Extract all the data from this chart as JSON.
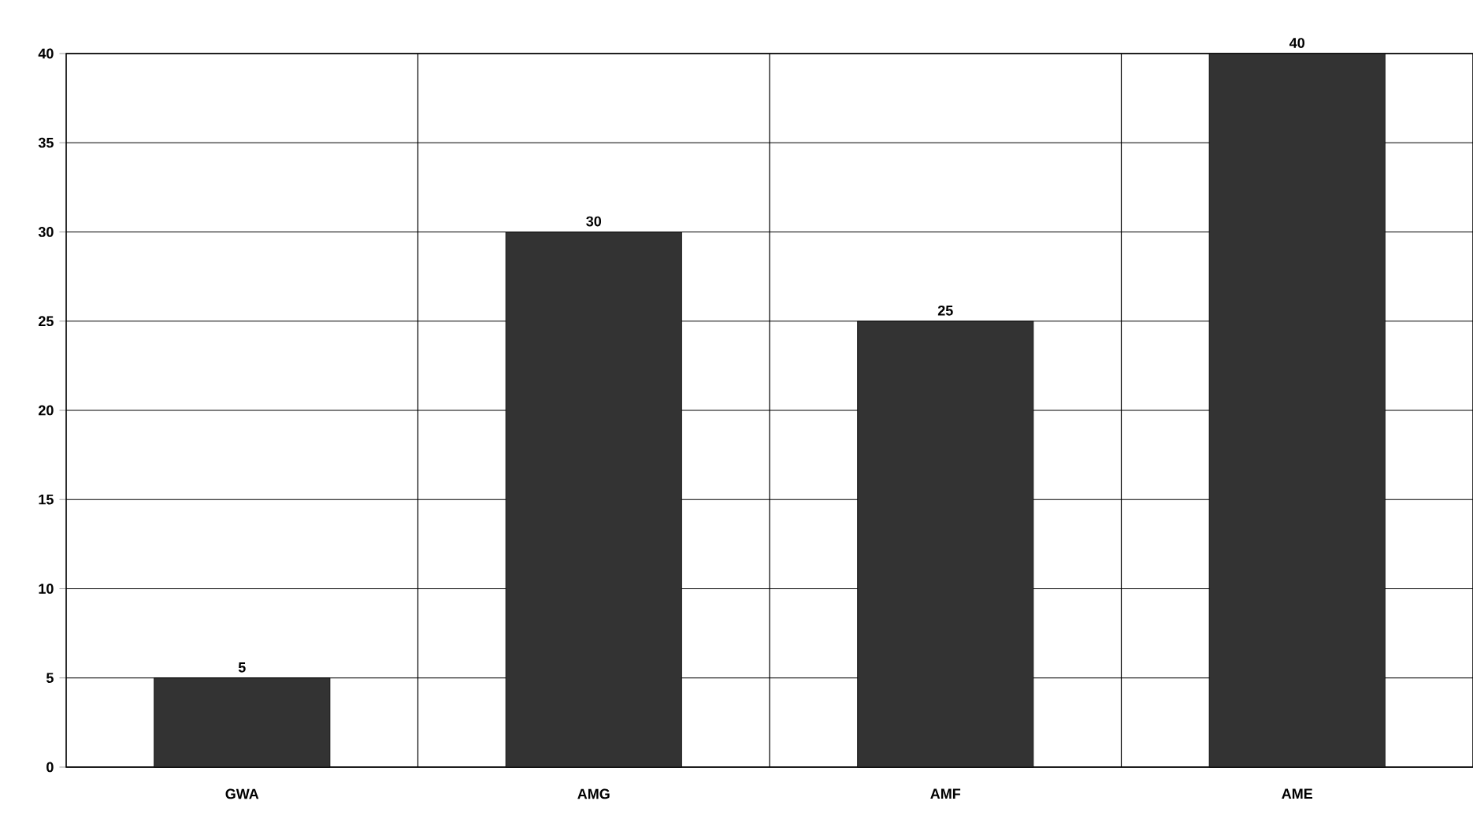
{
  "chart_data": {
    "type": "bar",
    "categories": [
      "GWA",
      "AMG",
      "AMF",
      "AME"
    ],
    "values": [
      5,
      30,
      25,
      40
    ],
    "color": "#333333",
    "ylim": [
      0,
      40
    ],
    "yticks": [
      0,
      5,
      10,
      15,
      20,
      25,
      30,
      35,
      40
    ],
    "grid": true,
    "data_labels": true
  }
}
